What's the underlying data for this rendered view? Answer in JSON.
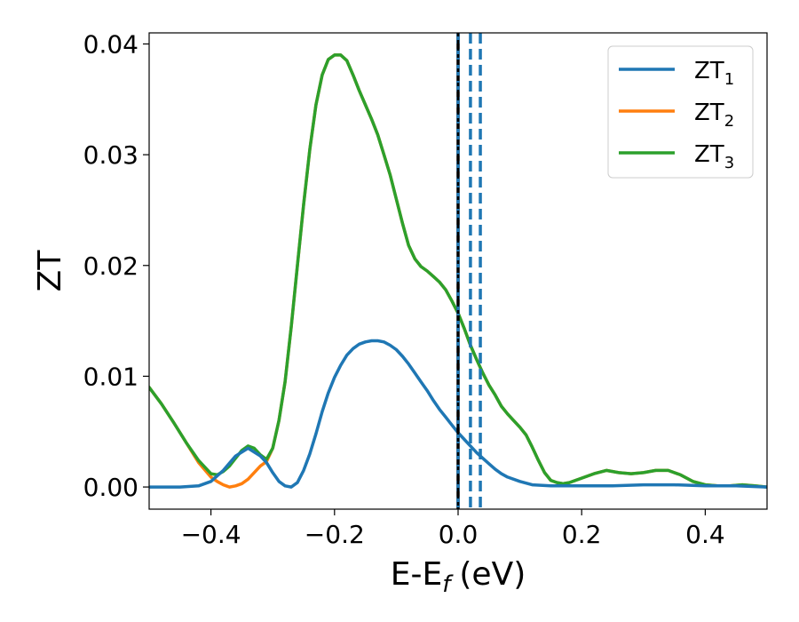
{
  "chart_data": {
    "type": "line",
    "xlabel": "E-E",
    "xlabel_subscript": "f",
    "xlabel_unit": "(eV)",
    "ylabel": "ZT",
    "xlim": [
      -0.5,
      0.5
    ],
    "ylim": [
      -0.002,
      0.041
    ],
    "xticks": [
      -0.4,
      -0.2,
      0.0,
      0.2,
      0.4
    ],
    "xtick_labels": [
      "−0.4",
      "−0.2",
      "0.0",
      "0.2",
      "0.4"
    ],
    "yticks": [
      0.0,
      0.01,
      0.02,
      0.03,
      0.04
    ],
    "ytick_labels": [
      "0.00",
      "0.01",
      "0.02",
      "0.03",
      "0.04"
    ],
    "grid": false,
    "legend_position": "top-right",
    "series": [
      {
        "name": "ZT",
        "subscript": "1",
        "color": "#1f77b4",
        "x": [
          -0.5,
          -0.45,
          -0.42,
          -0.4,
          -0.38,
          -0.36,
          -0.34,
          -0.32,
          -0.31,
          -0.3,
          -0.29,
          -0.28,
          -0.27,
          -0.26,
          -0.25,
          -0.24,
          -0.23,
          -0.22,
          -0.21,
          -0.2,
          -0.19,
          -0.18,
          -0.17,
          -0.16,
          -0.15,
          -0.14,
          -0.13,
          -0.12,
          -0.11,
          -0.1,
          -0.09,
          -0.08,
          -0.07,
          -0.06,
          -0.05,
          -0.04,
          -0.03,
          -0.02,
          -0.01,
          0.0,
          0.01,
          0.02,
          0.03,
          0.04,
          0.05,
          0.06,
          0.07,
          0.08,
          0.1,
          0.12,
          0.15,
          0.2,
          0.25,
          0.3,
          0.35,
          0.4,
          0.45,
          0.5
        ],
        "y": [
          0.0,
          0.0,
          0.0001,
          0.0005,
          0.0015,
          0.0028,
          0.0035,
          0.0028,
          0.0022,
          0.0013,
          0.0005,
          0.0001,
          0.0,
          0.0004,
          0.0015,
          0.003,
          0.0048,
          0.0068,
          0.0085,
          0.0099,
          0.011,
          0.0119,
          0.0125,
          0.0129,
          0.0131,
          0.0132,
          0.0132,
          0.0131,
          0.0128,
          0.0124,
          0.0118,
          0.0111,
          0.0103,
          0.0095,
          0.0087,
          0.0078,
          0.007,
          0.0063,
          0.0056,
          0.0049,
          0.0043,
          0.0037,
          0.0031,
          0.0026,
          0.0021,
          0.0016,
          0.0012,
          0.0009,
          0.0005,
          0.0002,
          0.0001,
          0.0001,
          0.0001,
          0.0002,
          0.0002,
          0.0001,
          0.0001,
          0.0
        ]
      },
      {
        "name": "ZT",
        "subscript": "2",
        "color": "#ff7f0e",
        "x": [
          -0.5,
          -0.48,
          -0.46,
          -0.44,
          -0.42,
          -0.4,
          -0.39,
          -0.38,
          -0.37,
          -0.36,
          -0.35,
          -0.34,
          -0.33,
          -0.32,
          -0.31,
          -0.3,
          -0.29,
          -0.28,
          -0.27,
          -0.26,
          -0.25,
          -0.24,
          -0.23,
          -0.22,
          -0.21,
          -0.2,
          -0.19,
          -0.18,
          -0.17,
          -0.16,
          -0.15,
          -0.14,
          -0.13,
          -0.12,
          -0.11,
          -0.1,
          -0.09,
          -0.08,
          -0.07,
          -0.06,
          -0.05,
          -0.04,
          -0.03,
          -0.02,
          -0.01,
          0.0,
          0.01,
          0.02,
          0.03,
          0.04,
          0.05,
          0.06,
          0.07,
          0.08,
          0.09,
          0.1,
          0.11,
          0.12,
          0.13,
          0.14,
          0.15,
          0.16,
          0.17,
          0.18,
          0.19,
          0.2,
          0.22,
          0.24,
          0.26,
          0.28,
          0.3,
          0.32,
          0.34,
          0.36,
          0.38,
          0.4,
          0.42,
          0.44,
          0.46,
          0.48,
          0.5
        ],
        "y": [
          0.009,
          0.0075,
          0.0058,
          0.004,
          0.0022,
          0.0009,
          0.0005,
          0.0002,
          0.0,
          0.0001,
          0.0003,
          0.0007,
          0.0013,
          0.0019,
          0.0023,
          0.0035,
          0.006,
          0.0095,
          0.0145,
          0.02,
          0.0255,
          0.0305,
          0.0345,
          0.0372,
          0.0386,
          0.039,
          0.039,
          0.0385,
          0.0372,
          0.0358,
          0.0345,
          0.0332,
          0.0318,
          0.03,
          0.0282,
          0.026,
          0.0238,
          0.0218,
          0.0206,
          0.0199,
          0.0195,
          0.019,
          0.0185,
          0.0178,
          0.0168,
          0.0157,
          0.0143,
          0.0128,
          0.0115,
          0.0103,
          0.0092,
          0.0083,
          0.0073,
          0.0066,
          0.006,
          0.0054,
          0.0047,
          0.0036,
          0.0024,
          0.0013,
          0.0006,
          0.0004,
          0.0003,
          0.0004,
          0.0006,
          0.0008,
          0.0012,
          0.0015,
          0.0013,
          0.0012,
          0.0013,
          0.0015,
          0.0015,
          0.0011,
          0.0005,
          0.0002,
          0.0001,
          0.0001,
          0.0002,
          0.0001,
          0.0
        ]
      },
      {
        "name": "ZT",
        "subscript": "3",
        "color": "#2ca02c",
        "x": [
          -0.5,
          -0.48,
          -0.46,
          -0.44,
          -0.42,
          -0.4,
          -0.39,
          -0.38,
          -0.37,
          -0.36,
          -0.35,
          -0.34,
          -0.33,
          -0.32,
          -0.31,
          -0.3,
          -0.29,
          -0.28,
          -0.27,
          -0.26,
          -0.25,
          -0.24,
          -0.23,
          -0.22,
          -0.21,
          -0.2,
          -0.19,
          -0.18,
          -0.17,
          -0.16,
          -0.15,
          -0.14,
          -0.13,
          -0.12,
          -0.11,
          -0.1,
          -0.09,
          -0.08,
          -0.07,
          -0.06,
          -0.05,
          -0.04,
          -0.03,
          -0.02,
          -0.01,
          0.0,
          0.01,
          0.02,
          0.03,
          0.04,
          0.05,
          0.06,
          0.07,
          0.08,
          0.09,
          0.1,
          0.11,
          0.12,
          0.13,
          0.14,
          0.15,
          0.16,
          0.17,
          0.18,
          0.19,
          0.2,
          0.22,
          0.24,
          0.26,
          0.28,
          0.3,
          0.32,
          0.34,
          0.36,
          0.38,
          0.4,
          0.42,
          0.44,
          0.46,
          0.48,
          0.5
        ],
        "y": [
          0.009,
          0.0075,
          0.0058,
          0.004,
          0.0024,
          0.0012,
          0.0011,
          0.0014,
          0.0019,
          0.0026,
          0.0033,
          0.0037,
          0.0035,
          0.0029,
          0.0025,
          0.0035,
          0.006,
          0.0095,
          0.0145,
          0.02,
          0.0255,
          0.0305,
          0.0345,
          0.0372,
          0.0386,
          0.039,
          0.039,
          0.0385,
          0.0372,
          0.0358,
          0.0345,
          0.0332,
          0.0318,
          0.03,
          0.0282,
          0.026,
          0.0238,
          0.0218,
          0.0206,
          0.0199,
          0.0195,
          0.019,
          0.0185,
          0.0178,
          0.0168,
          0.0157,
          0.0143,
          0.0128,
          0.0115,
          0.0103,
          0.0092,
          0.0083,
          0.0073,
          0.0066,
          0.006,
          0.0054,
          0.0047,
          0.0036,
          0.0024,
          0.0013,
          0.0006,
          0.0004,
          0.0003,
          0.0004,
          0.0006,
          0.0008,
          0.0012,
          0.0015,
          0.0013,
          0.0012,
          0.0013,
          0.0015,
          0.0015,
          0.0011,
          0.0005,
          0.0002,
          0.0001,
          0.0001,
          0.0002,
          0.0001,
          0.0
        ]
      }
    ],
    "vertical_lines": [
      {
        "x": 0.0,
        "color": "#000000",
        "style": "solid"
      },
      {
        "x": 0.0,
        "color": "#1f77b4",
        "style": "dashed"
      },
      {
        "x": 0.02,
        "color": "#1f77b4",
        "style": "dashed"
      },
      {
        "x": 0.036,
        "color": "#1f77b4",
        "style": "dashed"
      },
      {
        "x": 0.0,
        "color": "#000000",
        "style": "dotted"
      }
    ]
  }
}
